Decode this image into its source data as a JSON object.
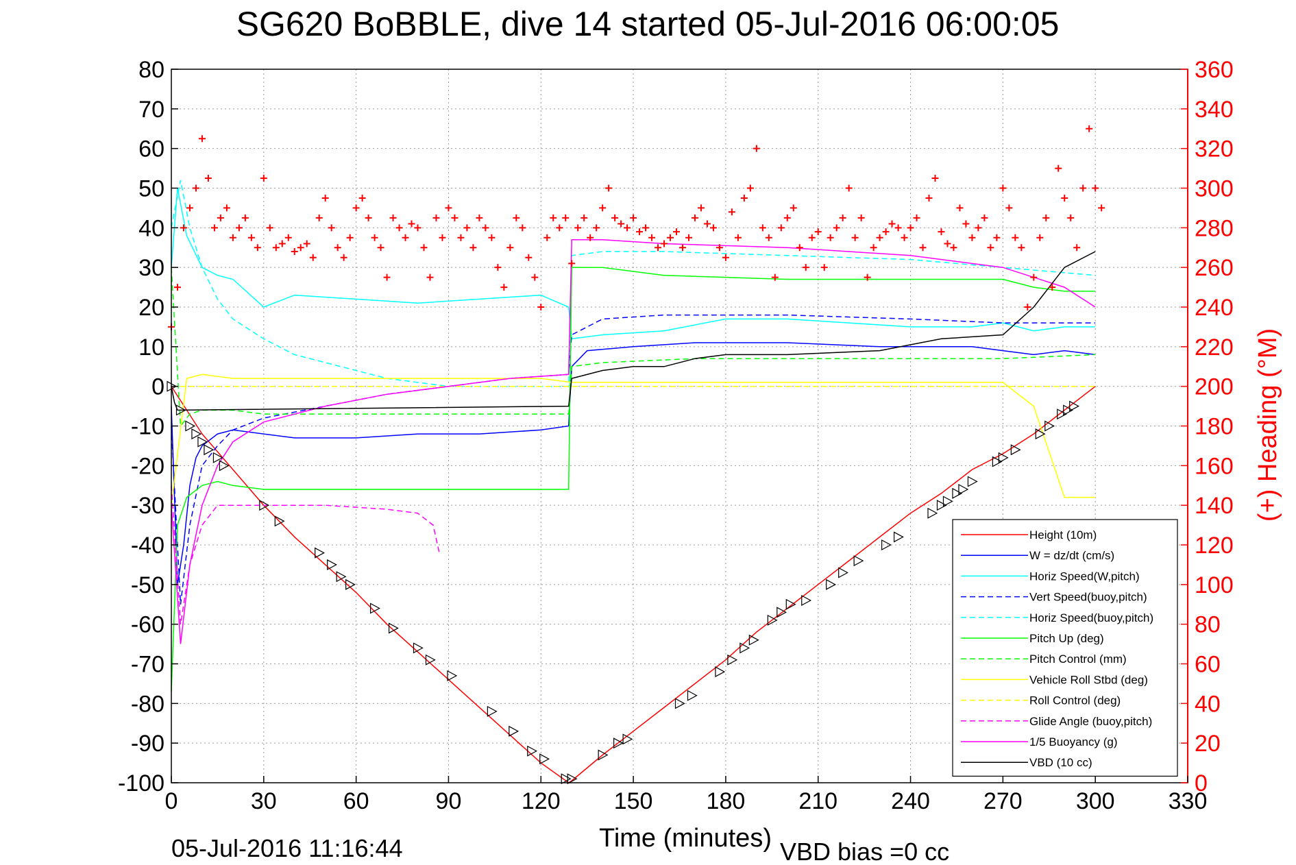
{
  "chart_data": {
    "type": "line",
    "title": "SG620 BoBBLE, dive 14 started 05-Jul-2016 06:00:05",
    "xlabel": "Time (minutes)",
    "ylabel_right": "(+) Heading (°M)",
    "footer_left": "05-Jul-2016 11:16:44",
    "footer_right": "VBD bias =0 cc",
    "xlim": [
      0,
      330
    ],
    "ylim": [
      -100,
      80
    ],
    "ylim_right": [
      0,
      360
    ],
    "x_ticks": [
      0,
      30,
      60,
      90,
      120,
      150,
      180,
      210,
      240,
      270,
      300,
      330
    ],
    "y_ticks": [
      -100,
      -90,
      -80,
      -70,
      -60,
      -50,
      -40,
      -30,
      -20,
      -10,
      0,
      10,
      20,
      30,
      40,
      50,
      60,
      70,
      80
    ],
    "y_ticks_right": [
      0,
      20,
      40,
      60,
      80,
      100,
      120,
      140,
      160,
      180,
      200,
      220,
      240,
      260,
      280,
      300,
      320,
      340,
      360
    ],
    "grid": true,
    "legend_position": "bottom-right",
    "series": [
      {
        "name": "Height (10m)",
        "color": "#ff0000",
        "style": "solid",
        "x": [
          0,
          5,
          10,
          20,
          30,
          40,
          50,
          60,
          70,
          80,
          90,
          100,
          110,
          120,
          129,
          130,
          140,
          150,
          160,
          170,
          180,
          190,
          200,
          210,
          220,
          230,
          240,
          250,
          260,
          270,
          280,
          290,
          300
        ],
        "values": [
          0,
          -6,
          -12,
          -21,
          -30,
          -38,
          -45,
          -52,
          -60,
          -67,
          -74,
          -81,
          -88,
          -95,
          -100,
          -99.5,
          -93,
          -87,
          -81,
          -75,
          -69,
          -62,
          -56,
          -50,
          -44,
          -38,
          -32,
          -27,
          -21,
          -17,
          -12,
          -6,
          0
        ]
      },
      {
        "name": "W = dz/dt (cm/s)",
        "color": "#0000ff",
        "style": "solid",
        "x": [
          0,
          2,
          4,
          6,
          8,
          10,
          15,
          20,
          30,
          40,
          60,
          80,
          100,
          120,
          129,
          130,
          135,
          150,
          170,
          200,
          230,
          260,
          270,
          280,
          290,
          300
        ],
        "values": [
          -5,
          -50,
          -40,
          -25,
          -18,
          -15,
          -12,
          -11,
          -12,
          -13,
          -13,
          -12,
          -12,
          -11,
          -10,
          5,
          9,
          10,
          11,
          11,
          10,
          10,
          9,
          8,
          9,
          8
        ]
      },
      {
        "name": "Horiz Speed(W,pitch)",
        "color": "#00ffff",
        "style": "solid",
        "x": [
          0,
          2,
          5,
          10,
          15,
          20,
          30,
          40,
          60,
          80,
          100,
          120,
          129,
          130,
          140,
          160,
          180,
          200,
          220,
          240,
          260,
          270,
          280,
          290,
          300
        ],
        "values": [
          30,
          50,
          38,
          30,
          28,
          27,
          20,
          23,
          22,
          21,
          22,
          23,
          20,
          12,
          13,
          14,
          17,
          17,
          16,
          15,
          15,
          16,
          14,
          15,
          15
        ]
      },
      {
        "name": "Vert Speed(buoy,pitch)",
        "color": "#0000ff",
        "style": "dashed",
        "x": [
          0,
          3,
          6,
          10,
          15,
          20,
          30,
          50,
          70,
          90,
          110,
          129,
          130,
          140,
          160,
          200,
          240,
          270,
          300
        ],
        "values": [
          -10,
          -55,
          -35,
          -20,
          -15,
          -11,
          -8,
          -5,
          -2,
          0,
          2,
          3,
          13,
          17,
          18,
          18,
          17,
          16,
          16
        ]
      },
      {
        "name": "Horiz Speed(buoy,pitch)",
        "color": "#00ffff",
        "style": "dashed",
        "x": [
          0,
          3,
          6,
          10,
          15,
          20,
          30,
          40,
          50,
          60,
          70,
          80,
          90,
          129,
          130,
          140,
          160,
          200,
          240,
          270,
          300
        ],
        "values": [
          40,
          52,
          40,
          30,
          22,
          17,
          12,
          8,
          6,
          4,
          2,
          1,
          0,
          0,
          33,
          34,
          34,
          33,
          32,
          30,
          28
        ]
      },
      {
        "name": "Pitch Up (deg)",
        "color": "#00ff00",
        "style": "solid",
        "x": [
          0,
          2,
          5,
          10,
          15,
          20,
          30,
          60,
          90,
          120,
          129,
          130,
          140,
          160,
          200,
          240,
          270,
          280,
          290,
          300
        ],
        "values": [
          -77,
          -35,
          -28,
          -25,
          -24,
          -25,
          -26,
          -26,
          -26,
          -26,
          -26,
          30,
          30,
          28,
          27,
          27,
          27,
          25,
          24,
          24
        ]
      },
      {
        "name": "Pitch Control (mm)",
        "color": "#00ff00",
        "style": "dashed",
        "x": [
          0,
          3,
          6,
          10,
          20,
          30,
          60,
          90,
          129,
          130,
          140,
          170,
          200,
          240,
          270,
          300
        ],
        "values": [
          30,
          -10,
          -7,
          -6,
          -6,
          -7,
          -7,
          -7,
          -7,
          5,
          6,
          7,
          7,
          7,
          7,
          8
        ]
      },
      {
        "name": "Vehicle Roll Stbd (deg)",
        "color": "#ffff00",
        "style": "solid",
        "x": [
          0,
          5,
          10,
          20,
          30,
          60,
          90,
          120,
          130,
          160,
          200,
          240,
          270,
          280,
          290,
          300
        ],
        "values": [
          -30,
          2,
          3,
          2,
          2,
          2,
          2,
          2,
          1,
          1,
          1,
          1,
          1,
          -5,
          -28,
          -28
        ]
      },
      {
        "name": "Roll Control (deg)",
        "color": "#ffff00",
        "style": "dashed",
        "x": [
          0,
          5,
          20,
          60,
          90,
          129,
          130,
          200,
          270,
          300
        ],
        "values": [
          0,
          0,
          0,
          0,
          0,
          0,
          0,
          0,
          0,
          0
        ]
      },
      {
        "name": "Glide Angle (buoy,pitch)",
        "color": "#ff00ff",
        "style": "dashed",
        "x": [
          0,
          3,
          6,
          10,
          15,
          20,
          30,
          50,
          70,
          80,
          85,
          87
        ],
        "values": [
          -25,
          -60,
          -45,
          -35,
          -30,
          -30,
          -30,
          -30,
          -31,
          -32,
          -35,
          -42
        ]
      },
      {
        "name": "1/5 Buoyancy (g)",
        "color": "#ff00ff",
        "style": "solid",
        "x": [
          0,
          3,
          6,
          10,
          15,
          20,
          30,
          50,
          70,
          90,
          110,
          129,
          130,
          140,
          160,
          200,
          240,
          270,
          290,
          300
        ],
        "values": [
          -30,
          -65,
          -45,
          -30,
          -20,
          -14,
          -9,
          -5,
          -2,
          0,
          2,
          3,
          37,
          37,
          36,
          35,
          33,
          30,
          25,
          20
        ]
      },
      {
        "name": "VBD (10 cc)",
        "color": "#000000",
        "style": "solid",
        "x": [
          0,
          1,
          2,
          129,
          130,
          140,
          150,
          160,
          170,
          180,
          200,
          230,
          250,
          270,
          280,
          290,
          300
        ],
        "values": [
          0,
          -4,
          -6,
          -5,
          2,
          4,
          5,
          5,
          7,
          8,
          8,
          9,
          12,
          13,
          20,
          30,
          34
        ]
      }
    ],
    "heading_series": {
      "name": "Heading",
      "axis": "right",
      "marker": "+",
      "color": "#ff0000",
      "x": [
        0,
        2,
        4,
        6,
        8,
        10,
        12,
        14,
        16,
        18,
        20,
        22,
        24,
        26,
        28,
        30,
        32,
        34,
        36,
        38,
        40,
        42,
        44,
        46,
        48,
        50,
        52,
        54,
        56,
        58,
        60,
        62,
        64,
        66,
        68,
        70,
        72,
        74,
        76,
        78,
        80,
        82,
        84,
        86,
        88,
        90,
        92,
        94,
        96,
        98,
        100,
        102,
        104,
        106,
        108,
        110,
        112,
        114,
        116,
        118,
        120,
        122,
        124,
        126,
        128,
        130,
        132,
        134,
        136,
        138,
        140,
        142,
        144,
        146,
        148,
        150,
        152,
        154,
        156,
        158,
        160,
        162,
        164,
        166,
        168,
        170,
        172,
        174,
        176,
        178,
        180,
        182,
        184,
        186,
        188,
        190,
        192,
        194,
        196,
        198,
        200,
        202,
        204,
        206,
        208,
        210,
        212,
        214,
        216,
        218,
        220,
        222,
        224,
        226,
        228,
        230,
        232,
        234,
        236,
        238,
        240,
        242,
        244,
        246,
        248,
        250,
        252,
        254,
        256,
        258,
        260,
        262,
        264,
        266,
        268,
        270,
        272,
        274,
        276,
        278,
        280,
        282,
        284,
        286,
        288,
        290,
        292,
        294,
        296,
        298,
        300,
        302
      ],
      "values": [
        230,
        250,
        280,
        290,
        300,
        325,
        305,
        280,
        285,
        290,
        275,
        280,
        285,
        275,
        270,
        305,
        280,
        270,
        272,
        275,
        268,
        270,
        272,
        265,
        285,
        295,
        280,
        270,
        265,
        275,
        290,
        295,
        285,
        275,
        270,
        255,
        285,
        280,
        275,
        282,
        280,
        270,
        255,
        285,
        275,
        290,
        285,
        275,
        280,
        270,
        285,
        280,
        275,
        260,
        250,
        270,
        285,
        280,
        265,
        255,
        240,
        275,
        285,
        280,
        285,
        262,
        280,
        285,
        275,
        280,
        290,
        300,
        285,
        282,
        280,
        285,
        278,
        280,
        275,
        270,
        272,
        275,
        278,
        270,
        275,
        285,
        290,
        282,
        280,
        270,
        265,
        288,
        275,
        295,
        300,
        320,
        280,
        275,
        255,
        280,
        285,
        290,
        270,
        260,
        275,
        278,
        260,
        275,
        280,
        285,
        300,
        275,
        285,
        255,
        270,
        275,
        278,
        282,
        280,
        275,
        280,
        285,
        270,
        295,
        305,
        278,
        272,
        270,
        290,
        282,
        275,
        280,
        285,
        270,
        275,
        300,
        290,
        275,
        270,
        240,
        255,
        275,
        285,
        250,
        310,
        295,
        285,
        270,
        300,
        330,
        300,
        290
      ]
    },
    "dive_markers": {
      "marker": "triangle",
      "color": "#000000",
      "x": [
        0,
        3,
        6,
        8,
        10,
        12,
        15,
        17,
        30,
        35,
        48,
        52,
        55,
        58,
        66,
        72,
        80,
        84,
        91,
        104,
        111,
        117,
        121,
        128,
        130,
        140,
        145,
        148,
        165,
        169,
        178,
        182,
        186,
        189,
        195,
        198,
        201,
        206,
        214,
        218,
        223,
        232,
        236,
        247,
        250,
        252,
        255,
        257,
        260,
        268,
        270,
        274,
        282,
        285,
        289,
        291,
        293
      ],
      "values": [
        0,
        -6,
        -10,
        -12,
        -14,
        -16,
        -18,
        -20,
        -30,
        -34,
        -42,
        -45,
        -48,
        -50,
        -56,
        -61,
        -66,
        -69,
        -73,
        -82,
        -87,
        -92,
        -94,
        -99,
        -99,
        -93,
        -90,
        -89,
        -80,
        -78,
        -72,
        -69,
        -66,
        -64,
        -59,
        -57,
        -55,
        -54,
        -50,
        -47,
        -44,
        -40,
        -38,
        -32,
        -30,
        -29,
        -27,
        -26,
        -24,
        -19,
        -18,
        -16,
        -12,
        -10,
        -7,
        -6,
        -5
      ]
    }
  }
}
